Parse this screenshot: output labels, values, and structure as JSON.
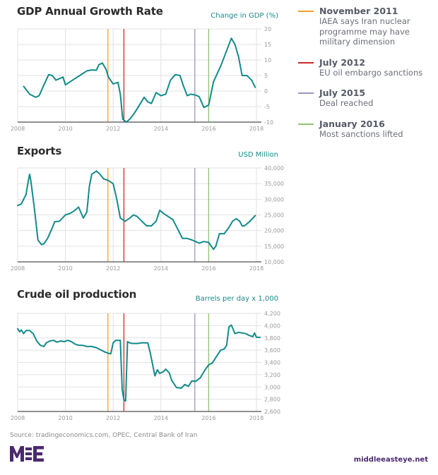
{
  "legend": [
    {
      "date": "November 2011",
      "description": "IAEA says Iran nuclear programme may have military dimension",
      "color": "#f0a030",
      "year": 2011.78
    },
    {
      "date": "July 2012",
      "description": "EU oil embargo sanctions",
      "color": "#cc2a2a",
      "year": 2012.45
    },
    {
      "date": "July 2015",
      "description": "Deal reached",
      "color": "#9a98c0",
      "year": 2015.42
    },
    {
      "date": "January 2016",
      "description": "Most sanctions lifted",
      "color": "#8ec470",
      "year": 2016.0
    }
  ],
  "footer": {
    "source": "Source: tradingeconomics.com, OPEC, Central Bank of Iran",
    "logo_text": "MEE",
    "site": "middleeasteye.net"
  },
  "colors": {
    "line": "#138a8a",
    "unit": "#1a8a8a",
    "logo": "#4a2a6e"
  },
  "chart_data": [
    {
      "type": "line",
      "title": "GDP Annual Growth Rate",
      "ylabel": "Change in GDP (%)",
      "xlabel": "",
      "xlim": [
        2008,
        2018
      ],
      "ylim": [
        -10,
        20
      ],
      "xticks": [
        "2008",
        "2010",
        "2012",
        "2014",
        "2016",
        "2018"
      ],
      "xtick_values": [
        2008,
        2010,
        2012,
        2014,
        2016,
        2018
      ],
      "yticks": [
        "20",
        "15",
        "10",
        "5",
        "0",
        "-5",
        "-10"
      ],
      "ytick_values": [
        20,
        15,
        10,
        5,
        0,
        -5,
        -10
      ],
      "grid": true,
      "series": [
        {
          "name": "GDP growth",
          "x": [
            2008.25,
            2008.5,
            2008.75,
            2008.9,
            2009.1,
            2009.3,
            2009.45,
            2009.6,
            2009.75,
            2009.9,
            2010.0,
            2010.3,
            2010.6,
            2010.9,
            2011.1,
            2011.3,
            2011.4,
            2011.55,
            2011.7,
            2011.8,
            2012.0,
            2012.2,
            2012.3,
            2012.4,
            2012.55,
            2012.7,
            2012.9,
            2013.1,
            2013.3,
            2013.45,
            2013.6,
            2013.8,
            2014.0,
            2014.2,
            2014.4,
            2014.6,
            2014.8,
            2014.95,
            2015.1,
            2015.25,
            2015.45,
            2015.6,
            2015.8,
            2016.0,
            2016.2,
            2016.5,
            2016.75,
            2016.95,
            2017.1,
            2017.25,
            2017.4,
            2017.6,
            2017.8,
            2017.95
          ],
          "values": [
            1.5,
            -1.0,
            -2.0,
            -1.5,
            2.0,
            5.3,
            5.0,
            3.5,
            4.0,
            4.5,
            2.0,
            3.5,
            5.0,
            6.5,
            6.8,
            6.7,
            8.5,
            9.0,
            7.0,
            4.5,
            2.3,
            2.8,
            -1.0,
            -9.0,
            -10.0,
            -9.0,
            -7.0,
            -4.5,
            -2.0,
            -3.5,
            -4.0,
            -0.5,
            -1.5,
            -1.0,
            3.5,
            5.3,
            5.0,
            1.5,
            -1.5,
            -1.0,
            -1.3,
            -1.8,
            -5.3,
            -4.5,
            3.0,
            8.0,
            13.0,
            17.0,
            15.0,
            11.0,
            5.0,
            5.0,
            3.5,
            1.2
          ]
        }
      ]
    },
    {
      "type": "line",
      "title": "Exports",
      "ylabel": "USD Million",
      "xlabel": "",
      "xlim": [
        2008,
        2018
      ],
      "ylim": [
        10000,
        40000
      ],
      "xticks": [
        "2008",
        "2010",
        "2012",
        "2014",
        "2016",
        "2018"
      ],
      "xtick_values": [
        2008,
        2010,
        2012,
        2014,
        2016,
        2018
      ],
      "yticks": [
        "40,000",
        "35,000",
        "30,000",
        "25,000",
        "20,000",
        "15,000",
        "10,000"
      ],
      "ytick_values": [
        40000,
        35000,
        30000,
        25000,
        20000,
        15000,
        10000
      ],
      "grid": true,
      "series": [
        {
          "name": "Exports",
          "x": [
            2008.0,
            2008.15,
            2008.35,
            2008.45,
            2008.5,
            2008.55,
            2008.7,
            2008.85,
            2009.0,
            2009.1,
            2009.25,
            2009.4,
            2009.55,
            2009.75,
            2010.0,
            2010.2,
            2010.4,
            2010.55,
            2010.75,
            2010.9,
            2011.0,
            2011.1,
            2011.3,
            2011.45,
            2011.6,
            2011.8,
            2012.0,
            2012.15,
            2012.3,
            2012.5,
            2012.7,
            2012.85,
            2013.0,
            2013.2,
            2013.4,
            2013.6,
            2013.8,
            2013.95,
            2014.1,
            2014.3,
            2014.5,
            2014.7,
            2014.9,
            2015.1,
            2015.3,
            2015.45,
            2015.6,
            2015.8,
            2016.0,
            2016.2,
            2016.3,
            2016.45,
            2016.65,
            2016.85,
            2017.0,
            2017.15,
            2017.3,
            2017.4,
            2017.5,
            2017.7,
            2017.95
          ],
          "values": [
            28000,
            28500,
            31500,
            36000,
            38000,
            36000,
            27000,
            17000,
            15500,
            15800,
            17500,
            20000,
            22800,
            23000,
            25000,
            25500,
            26500,
            27500,
            24000,
            26000,
            34000,
            38000,
            39000,
            38000,
            36500,
            36000,
            35000,
            30000,
            24000,
            23000,
            24000,
            25000,
            24500,
            23000,
            21500,
            21500,
            23000,
            26500,
            25500,
            24500,
            23500,
            20500,
            17500,
            17500,
            17000,
            16500,
            16000,
            16500,
            16200,
            14000,
            15000,
            19000,
            19000,
            21000,
            23000,
            23800,
            23000,
            21500,
            21500,
            22800,
            24800
          ]
        }
      ]
    },
    {
      "type": "line",
      "title": "Crude oil production",
      "ylabel": "Barrels per day x 1,000",
      "xlabel": "",
      "xlim": [
        2008,
        2018
      ],
      "ylim": [
        2600,
        4200
      ],
      "xticks": [
        "2008",
        "2010",
        "2012",
        "2014",
        "2016",
        "2018"
      ],
      "xtick_values": [
        2008,
        2010,
        2012,
        2014,
        2016,
        2018
      ],
      "yticks": [
        "4,200",
        "4,000",
        "3,800",
        "3,600",
        "3,400",
        "3,200",
        "3,000",
        "2,800",
        "2,600"
      ],
      "ytick_values": [
        4200,
        4000,
        3800,
        3600,
        3400,
        3200,
        3000,
        2800,
        2600
      ],
      "grid": true,
      "series": [
        {
          "name": "Crude oil production",
          "x": [
            2008.0,
            2008.08,
            2008.15,
            2008.25,
            2008.35,
            2008.5,
            2008.65,
            2008.8,
            2008.95,
            2009.1,
            2009.2,
            2009.35,
            2009.5,
            2009.65,
            2009.8,
            2009.95,
            2010.1,
            2010.25,
            2010.4,
            2010.55,
            2010.7,
            2010.9,
            2011.1,
            2011.3,
            2011.5,
            2011.65,
            2011.8,
            2011.9,
            2012.0,
            2012.1,
            2012.3,
            2012.38,
            2012.45,
            2012.52,
            2012.6,
            2012.68,
            2012.8,
            2013.0,
            2013.2,
            2013.45,
            2013.55,
            2013.75,
            2013.85,
            2013.95,
            2014.1,
            2014.2,
            2014.35,
            2014.45,
            2014.65,
            2014.85,
            2015.0,
            2015.15,
            2015.3,
            2015.45,
            2015.65,
            2015.85,
            2016.0,
            2016.15,
            2016.3,
            2016.5,
            2016.65,
            2016.75,
            2016.85,
            2016.95,
            2017.1,
            2017.25,
            2017.4,
            2017.55,
            2017.7,
            2017.85,
            2017.92,
            2018.0,
            2018.15
          ],
          "values": [
            3950,
            3900,
            3930,
            3870,
            3920,
            3920,
            3870,
            3750,
            3680,
            3660,
            3720,
            3750,
            3760,
            3730,
            3750,
            3740,
            3760,
            3740,
            3700,
            3680,
            3680,
            3660,
            3660,
            3640,
            3600,
            3570,
            3550,
            3540,
            3720,
            3760,
            3760,
            2950,
            2790,
            2770,
            3740,
            3720,
            3710,
            3710,
            3720,
            3720,
            3560,
            3180,
            3280,
            3220,
            3250,
            3290,
            3230,
            3110,
            2990,
            2980,
            3040,
            3010,
            3100,
            3090,
            3150,
            3280,
            3360,
            3390,
            3480,
            3600,
            3620,
            3680,
            3980,
            4010,
            3870,
            3890,
            3880,
            3870,
            3840,
            3820,
            3880,
            3810,
            3810
          ]
        }
      ]
    }
  ]
}
